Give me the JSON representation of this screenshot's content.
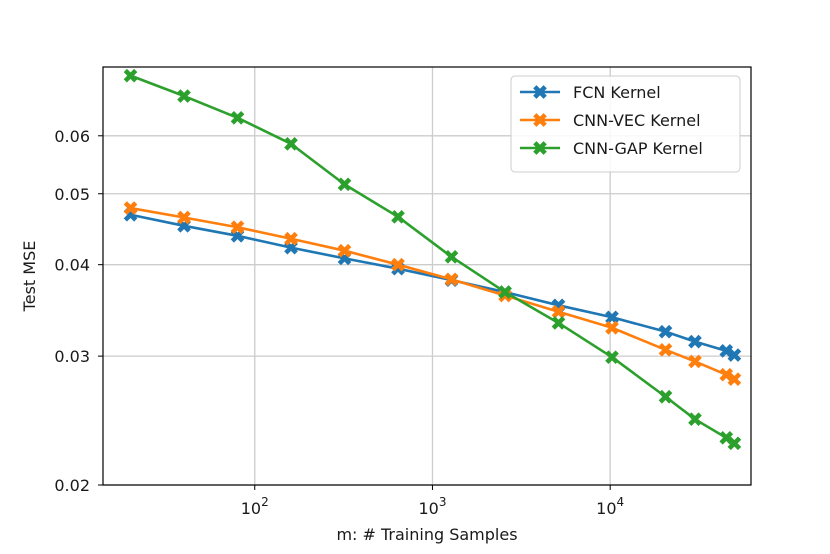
{
  "chart_data": {
    "type": "line",
    "xscale": "log",
    "yscale": "log",
    "xlabel": "m: # Training Samples",
    "ylabel": "Test MSE",
    "xlim": [
      14,
      62000
    ],
    "ylim": [
      0.02,
      0.0745
    ],
    "grid": true,
    "legend_position": "top-right",
    "x_ticks": [
      {
        "value": 100,
        "base": "10",
        "exp": "2"
      },
      {
        "value": 1000,
        "base": "10",
        "exp": "3"
      },
      {
        "value": 10000,
        "base": "10",
        "exp": "4"
      }
    ],
    "y_ticks": [
      {
        "value": 0.02,
        "label": "0.02"
      },
      {
        "value": 0.03,
        "label": "0.03"
      },
      {
        "value": 0.04,
        "label": "0.04"
      },
      {
        "value": 0.05,
        "label": "0.05"
      },
      {
        "value": 0.06,
        "label": "0.06"
      }
    ],
    "x": [
      20,
      40,
      80,
      160,
      320,
      640,
      1280,
      2560,
      5120,
      10240,
      20480,
      30000,
      45000,
      50000
    ],
    "series": [
      {
        "name": "FCN Kernel",
        "color": "#1f77b4",
        "values": [
          0.0468,
          0.0452,
          0.0438,
          0.0422,
          0.0408,
          0.0395,
          0.0381,
          0.0367,
          0.0352,
          0.0339,
          0.0324,
          0.0314,
          0.0305,
          0.0301
        ]
      },
      {
        "name": "CNN-VEC Kernel",
        "color": "#ff7f0e",
        "values": [
          0.0478,
          0.0464,
          0.045,
          0.0434,
          0.0418,
          0.04,
          0.0382,
          0.0363,
          0.0345,
          0.0328,
          0.0306,
          0.0295,
          0.0283,
          0.0279
        ]
      },
      {
        "name": "CNN-GAP Kernel",
        "color": "#2ca02c",
        "values": [
          0.0725,
          0.068,
          0.0635,
          0.0585,
          0.0515,
          0.0465,
          0.041,
          0.0367,
          0.0333,
          0.0299,
          0.0264,
          0.0246,
          0.0232,
          0.0228
        ]
      }
    ]
  }
}
